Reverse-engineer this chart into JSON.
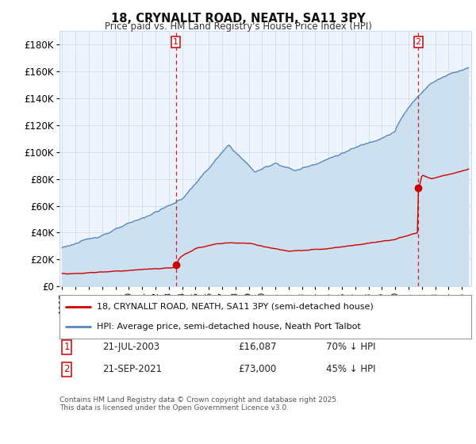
{
  "title": "18, CRYNALLT ROAD, NEATH, SA11 3PY",
  "subtitle": "Price paid vs. HM Land Registry's House Price Index (HPI)",
  "background_color": "#ffffff",
  "plot_bg_color": "#eef4fb",
  "grid_color": "#c8d8e8",
  "hpi_color": "#5588bb",
  "hpi_fill_color": "#cce0f0",
  "price_color": "#cc0000",
  "marker_color": "#cc0000",
  "dashed_color": "#cc0000",
  "ylim": [
    0,
    190000
  ],
  "yticks": [
    0,
    20000,
    40000,
    60000,
    80000,
    100000,
    120000,
    140000,
    160000,
    180000
  ],
  "ytick_labels": [
    "£0",
    "£20K",
    "£40K",
    "£60K",
    "£80K",
    "£100K",
    "£120K",
    "£140K",
    "£160K",
    "£180K"
  ],
  "sale1_year": 2003.54,
  "sale1_price": 16087,
  "sale1_label": "1",
  "sale1_date_str": "21-JUL-2003",
  "sale1_pct": "70% ↓ HPI",
  "sale2_year": 2021.72,
  "sale2_price": 73000,
  "sale2_label": "2",
  "sale2_date_str": "21-SEP-2021",
  "sale2_pct": "45% ↓ HPI",
  "legend_line1": "18, CRYNALLT ROAD, NEATH, SA11 3PY (semi-detached house)",
  "legend_line2": "HPI: Average price, semi-detached house, Neath Port Talbot",
  "footnote": "Contains HM Land Registry data © Crown copyright and database right 2025.\nThis data is licensed under the Open Government Licence v3.0.",
  "xstart_year": 1995,
  "xend_year": 2025
}
